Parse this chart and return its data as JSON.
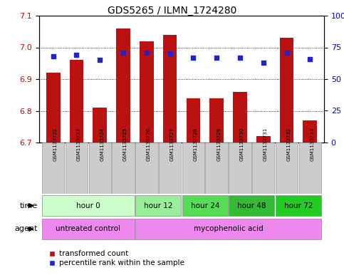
{
  "title": "GDS5265 / ILMN_1724280",
  "samples": [
    "GSM1133722",
    "GSM1133723",
    "GSM1133724",
    "GSM1133725",
    "GSM1133726",
    "GSM1133727",
    "GSM1133728",
    "GSM1133729",
    "GSM1133730",
    "GSM1133731",
    "GSM1133732",
    "GSM1133733"
  ],
  "transformed_count": [
    6.92,
    6.96,
    6.81,
    7.06,
    7.02,
    7.04,
    6.84,
    6.84,
    6.86,
    6.72,
    7.03,
    6.77
  ],
  "percentile_rank": [
    68,
    69,
    65,
    71,
    71,
    70,
    67,
    67,
    67,
    63,
    71,
    66
  ],
  "ylim_left": [
    6.7,
    7.1
  ],
  "ylim_right": [
    0,
    100
  ],
  "yticks_left": [
    6.7,
    6.8,
    6.9,
    7.0,
    7.1
  ],
  "yticks_right": [
    0,
    25,
    50,
    75,
    100
  ],
  "bar_color": "#bb1111",
  "dot_color": "#2222cc",
  "bar_bottom": 6.7,
  "time_groups": [
    {
      "label": "hour 0",
      "indices": [
        0,
        1,
        2,
        3
      ],
      "color": "#ccffcc"
    },
    {
      "label": "hour 12",
      "indices": [
        4,
        5
      ],
      "color": "#99ee99"
    },
    {
      "label": "hour 24",
      "indices": [
        6,
        7
      ],
      "color": "#55dd55"
    },
    {
      "label": "hour 48",
      "indices": [
        8,
        9
      ],
      "color": "#33bb33"
    },
    {
      "label": "hour 72",
      "indices": [
        10,
        11
      ],
      "color": "#22cc22"
    }
  ],
  "agent_groups": [
    {
      "label": "untreated control",
      "indices": [
        0,
        1,
        2,
        3
      ],
      "color": "#ee88ee"
    },
    {
      "label": "mycophenolic acid",
      "indices": [
        4,
        5,
        6,
        7,
        8,
        9,
        10,
        11
      ],
      "color": "#ee88ee"
    }
  ],
  "legend_items": [
    {
      "label": "transformed count",
      "color": "#bb1111"
    },
    {
      "label": "percentile rank within the sample",
      "color": "#2222cc"
    }
  ],
  "left_label_color": "#cc0000",
  "right_label_color": "#0000cc",
  "sample_box_color": "#cccccc",
  "sample_box_edge": "#999999"
}
